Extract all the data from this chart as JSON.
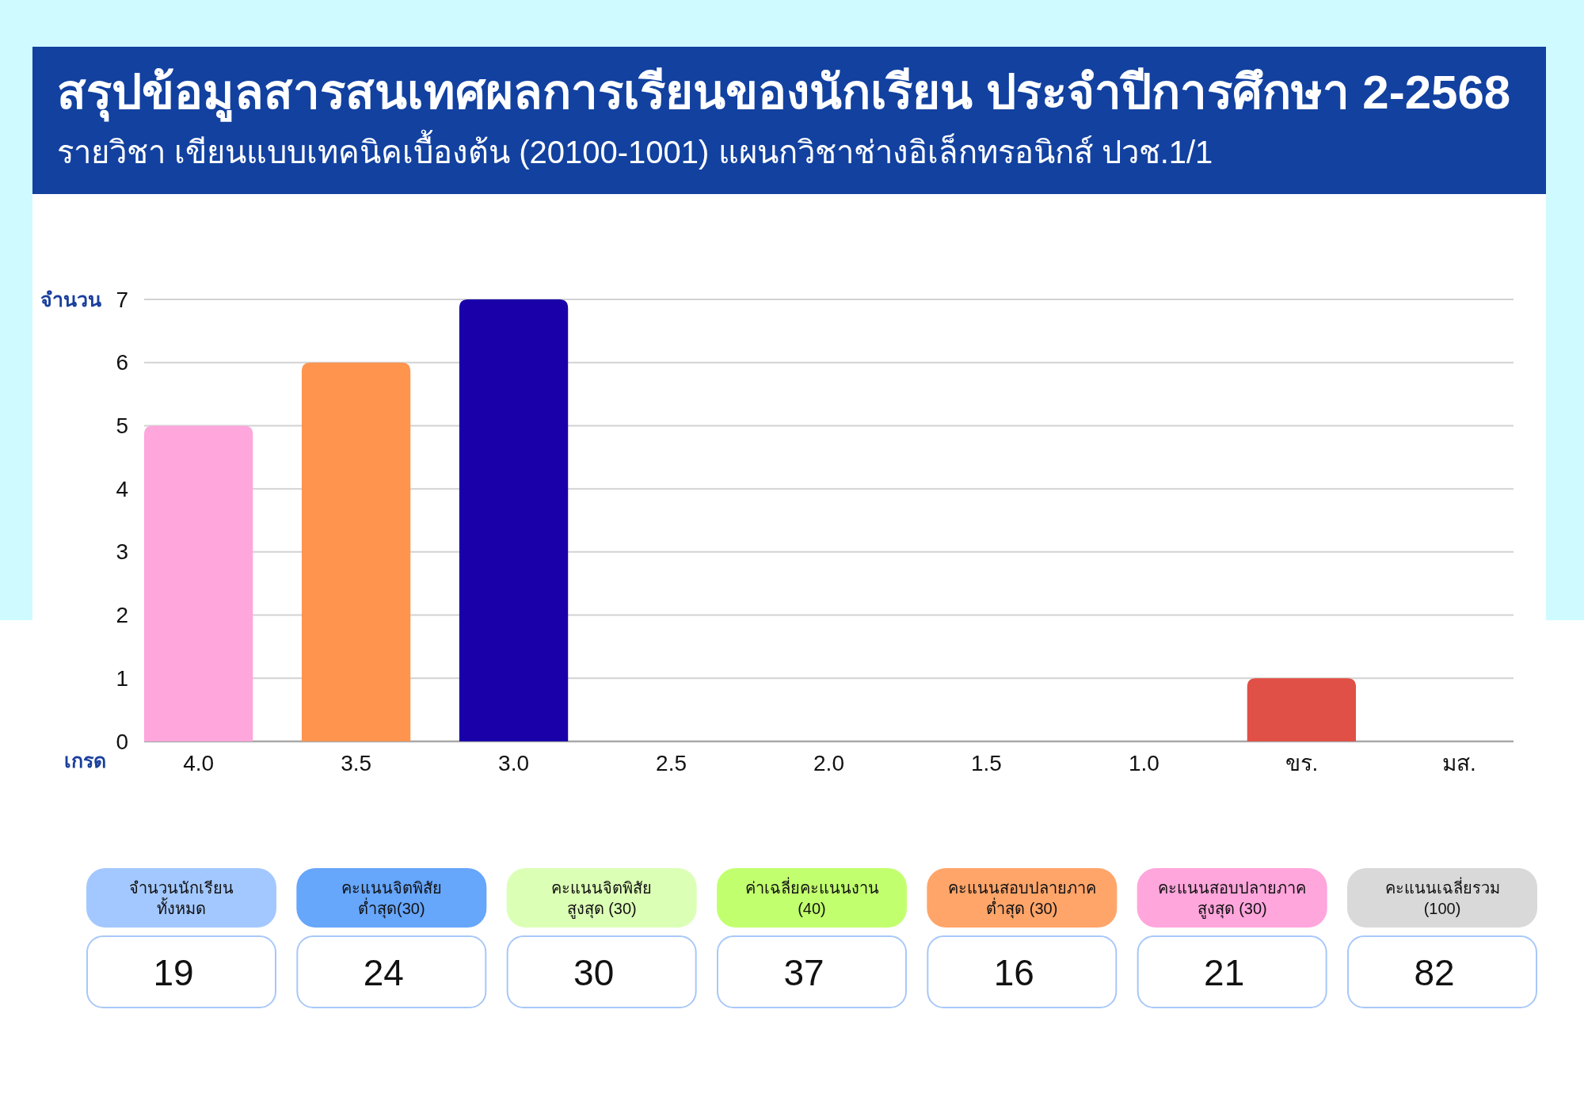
{
  "chart_data": [
    {
      "type": "bar",
      "title": "สรุปข้อมูลสารสนเทศผลการเรียนของนักเรียน ประจำปีการศึกษา 2-2568",
      "subtitle": "รายวิชา เขียนแบบเทคนิคเบื้องต้น (20100-1001) แผนกวิชาช่างอิเล็กทรอนิกส์ ปวช.1/1",
      "xlabel": "เกรด",
      "ylabel": "จำนวน",
      "categories": [
        "4.0",
        "3.5",
        "3.0",
        "2.5",
        "2.0",
        "1.5",
        "1.0",
        "ขร.",
        "มส."
      ],
      "values": [
        5,
        6,
        7,
        0,
        0,
        0,
        0,
        1,
        0
      ],
      "colors": [
        "#ffa6dc",
        "#ff944f",
        "#1900a8",
        null,
        null,
        null,
        null,
        "#e05046",
        null
      ],
      "ylim": [
        0,
        7
      ],
      "yticks": [
        0,
        1,
        2,
        3,
        4,
        5,
        6,
        7
      ],
      "grid": "y"
    },
    {
      "type": "other",
      "categories": [
        "จำนวนนักเรียน\nทั้งหมด",
        "คะแนนจิตพิสัย\nต่ำสุด(30)",
        "คะแนนจิตพิสัย\nสูงสุด (30)",
        "ค่าเฉลี่ยคะแนนงาน\n(40)",
        "คะแนนสอบปลายภาค\nต่ำสุด (30)",
        "คะแนนสอบปลายภาค\nสูงสุด (30)",
        "คะแนนเฉลี่ยรวม\n(100)"
      ],
      "values": [
        19,
        24,
        30,
        37,
        16,
        21,
        82
      ],
      "colors": [
        "#a3c8ff",
        "#66a6fb",
        "#dcffb6",
        "#c2ff6e",
        "#ffa56a",
        "#ffa6dc",
        "#d9d9d9"
      ],
      "data_labels": true
    }
  ]
}
